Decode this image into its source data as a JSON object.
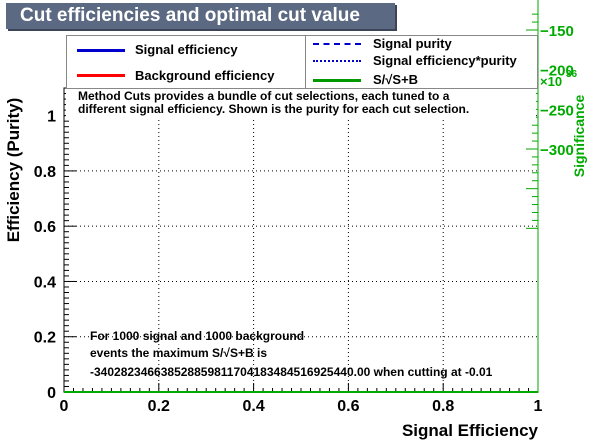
{
  "title": "Cut efficiencies and optimal cut value",
  "legend": {
    "left": [
      {
        "label": "Signal efficiency",
        "color": "#0000cc",
        "style": "solid"
      },
      {
        "label": "Background efficiency",
        "color": "#ff0000",
        "style": "solid"
      }
    ],
    "right": [
      {
        "label": "Signal purity",
        "color": "#0000cc",
        "style": "dashed"
      },
      {
        "label": "Signal efficiency*purity",
        "color": "#0000cc",
        "style": "dotted"
      },
      {
        "label": "S/√S+B",
        "color": "#009900",
        "style": "solid"
      }
    ]
  },
  "note": {
    "line1": "Method Cuts provides a bundle of cut selections, each tuned to a",
    "line2": "different signal efficiency. Shown is the purity for each cut selection."
  },
  "result": {
    "line1": "For 1000 signal and 1000 background",
    "line2": "events the maximum S/√S+B is",
    "line3": "-340282346638528859811704183484516925440.00 when cutting at -0.01"
  },
  "colors": {
    "title_bg": "#5b6a82",
    "axis": "#000000",
    "right_axis": "#00aa00",
    "grid": "#000000"
  },
  "chart_data": {
    "type": "line",
    "title": "Cut efficiencies and optimal cut value",
    "xlabel": "Signal Efficiency",
    "ylabel": "Efficiency (Purity)",
    "xlim": [
      0,
      1
    ],
    "ylim": [
      0,
      1.1
    ],
    "x_ticks": [
      "0",
      "0.2",
      "0.4",
      "0.6",
      "0.8",
      "1"
    ],
    "y_ticks": [
      "0",
      "0.2",
      "0.4",
      "0.6",
      "0.8",
      "1"
    ],
    "grid": true,
    "series": [
      {
        "name": "Signal efficiency",
        "x": [
          0,
          1
        ],
        "y": [
          0,
          0
        ]
      },
      {
        "name": "S/√S+B",
        "x": [
          0,
          1
        ],
        "y": [
          0,
          0
        ]
      }
    ],
    "right_axis": {
      "label": "Significance",
      "exponent_label": "×10",
      "exponent": "36",
      "tick_labels": [
        "−150",
        "−200",
        "−250",
        "−300"
      ],
      "tick_values": [
        -150,
        -200,
        -250,
        -300
      ]
    }
  }
}
